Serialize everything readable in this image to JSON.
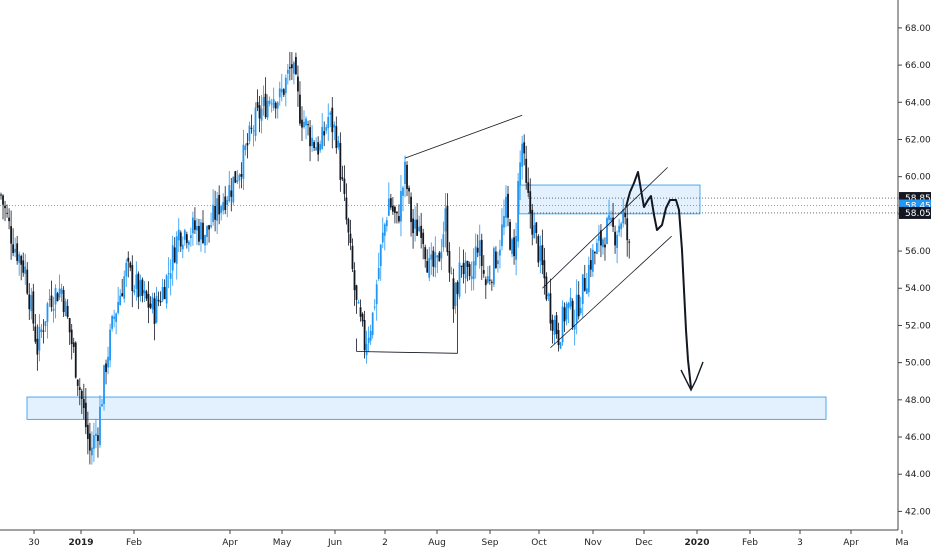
{
  "chart_data": {
    "type": "candlestick",
    "title": "",
    "xlabel": "",
    "ylabel": "",
    "ylim": [
      41.0,
      69.5
    ],
    "grid": false,
    "yticks": [
      "42.00",
      "44.00",
      "46.00",
      "48.00",
      "50.00",
      "52.00",
      "54.00",
      "56.00",
      "58.00",
      "60.00",
      "62.00",
      "64.00",
      "66.00",
      "68.00"
    ],
    "xticks": [
      "30",
      "2019",
      "Feb",
      "Apr",
      "May",
      "Jun",
      "2",
      "Aug",
      "Sep",
      "Oct",
      "Nov",
      "Dec",
      "2020",
      "Feb",
      "3",
      "Apr",
      "Ma"
    ],
    "price_tags": [
      {
        "label": "58.85",
        "value": 58.85,
        "color": "#131722"
      },
      {
        "label": "58.45",
        "value": 58.45,
        "color": "#2196f3"
      },
      {
        "label": "58.05",
        "value": 58.05,
        "color": "#131722"
      }
    ],
    "zones": [
      {
        "name": "resistance-zone",
        "y_top": 59.55,
        "y_bottom": 58.0
      },
      {
        "name": "support-zone",
        "y_top": 48.15,
        "y_bottom": 46.95
      }
    ],
    "candle_count": 255,
    "series": [
      {
        "name": "",
        "anchors": [
          [
            0,
            59.0
          ],
          [
            6,
            56.5
          ],
          [
            12,
            55.0
          ],
          [
            18,
            50.8
          ],
          [
            24,
            53.5
          ],
          [
            30,
            54.0
          ],
          [
            36,
            50.5
          ],
          [
            40,
            48.0
          ],
          [
            44,
            45.2
          ],
          [
            48,
            46.5
          ],
          [
            52,
            50.0
          ],
          [
            56,
            52.5
          ],
          [
            62,
            55.0
          ],
          [
            70,
            53.5
          ],
          [
            76,
            52.8
          ],
          [
            82,
            54.5
          ],
          [
            88,
            57.0
          ],
          [
            96,
            57.2
          ],
          [
            102,
            57.0
          ],
          [
            108,
            58.5
          ],
          [
            114,
            59.5
          ],
          [
            120,
            61.0
          ],
          [
            126,
            63.0
          ],
          [
            134,
            64.5
          ],
          [
            138,
            64.2
          ],
          [
            144,
            66.0
          ],
          [
            148,
            63.5
          ],
          [
            154,
            62.0
          ],
          [
            158,
            61.5
          ],
          [
            162,
            63.2
          ],
          [
            166,
            62.3
          ],
          [
            170,
            58.5
          ],
          [
            176,
            53.0
          ],
          [
            180,
            51.0
          ],
          [
            184,
            52.5
          ],
          [
            188,
            56.0
          ],
          [
            192,
            58.8
          ],
          [
            196,
            57.5
          ],
          [
            200,
            60.2
          ],
          [
            204,
            57.0
          ],
          [
            208,
            57.5
          ],
          [
            212,
            55.0
          ],
          [
            216,
            55.2
          ],
          [
            220,
            57.8
          ],
          [
            224,
            53.0
          ],
          [
            228,
            55.5
          ],
          [
            232,
            54.0
          ],
          [
            236,
            56.5
          ],
          [
            240,
            54.2
          ],
          [
            246,
            56.0
          ],
          [
            250,
            58.2
          ],
          [
            254,
            55.3
          ],
          [
            256,
            59.5
          ],
          [
            258,
            61.8
          ],
          [
            260,
            59.2
          ],
          [
            264,
            57.0
          ],
          [
            268,
            55.0
          ],
          [
            272,
            52.8
          ],
          [
            276,
            51.5
          ],
          [
            280,
            53.0
          ],
          [
            284,
            52.5
          ],
          [
            288,
            54.0
          ],
          [
            292,
            55.5
          ],
          [
            296,
            56.3
          ],
          [
            300,
            57.2
          ],
          [
            304,
            57.0
          ],
          [
            308,
            58.0
          ],
          [
            311,
            56.0
          ]
        ]
      },
      {
        "name": "",
        "anchors": [],
        "projection": true
      }
    ],
    "trendlines": [
      {
        "name": "upper-trendline",
        "from": [
          200,
          61.0
        ],
        "to": [
          258,
          63.3
        ]
      },
      {
        "name": "lower-trendline",
        "from": [
          176,
          50.6
        ],
        "to": [
          226,
          50.5
        ]
      },
      {
        "name": "channel-upper",
        "from": [
          268,
          54.0
        ],
        "to": [
          330,
          60.5
        ]
      },
      {
        "name": "channel-lower",
        "from": [
          272,
          50.8
        ],
        "to": [
          332,
          56.8
        ]
      }
    ]
  }
}
